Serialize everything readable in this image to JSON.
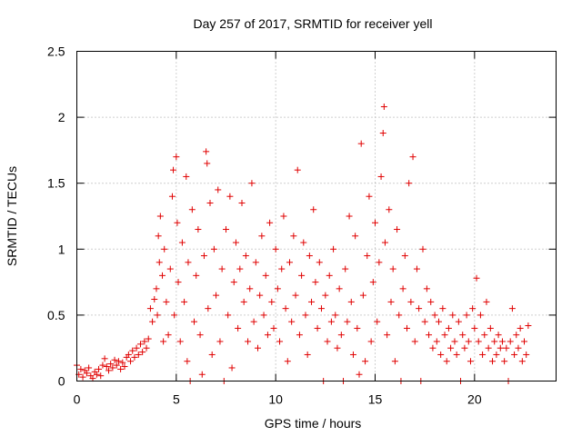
{
  "chart_data": {
    "type": "scatter",
    "title": "Day 257 of 2017, SRMTID for receiver yell",
    "xlabel": "GPS time / hours",
    "ylabel": "SRMTID / TECUs",
    "xlim": [
      0,
      24.1
    ],
    "ylim": [
      0,
      2.5
    ],
    "xticks": [
      0,
      5,
      10,
      15,
      20
    ],
    "xtick_labels": [
      "0",
      "5",
      "10",
      "15",
      "20"
    ],
    "yticks": [
      0,
      0.5,
      1,
      1.5,
      2,
      2.5
    ],
    "ytick_labels": [
      "0",
      "0.5",
      "1",
      "1.5",
      "2",
      "2.5"
    ],
    "grid": true,
    "marker": "plus",
    "color": "#e00000",
    "series": [
      {
        "name": "SRMTID",
        "points": [
          [
            0.0,
            0.12
          ],
          [
            0.1,
            0.05
          ],
          [
            0.2,
            0.09
          ],
          [
            0.3,
            0.03
          ],
          [
            0.4,
            0.08
          ],
          [
            0.5,
            0.06
          ],
          [
            0.6,
            0.1
          ],
          [
            0.7,
            0.04
          ],
          [
            0.8,
            0.02
          ],
          [
            0.9,
            0.07
          ],
          [
            1.0,
            0.05
          ],
          [
            1.1,
            0.09
          ],
          [
            1.2,
            0.04
          ],
          [
            1.3,
            0.12
          ],
          [
            1.4,
            0.17
          ],
          [
            1.5,
            0.11
          ],
          [
            1.6,
            0.08
          ],
          [
            1.7,
            0.13
          ],
          [
            1.8,
            0.1
          ],
          [
            1.9,
            0.16
          ],
          [
            2.0,
            0.12
          ],
          [
            2.1,
            0.15
          ],
          [
            2.2,
            0.09
          ],
          [
            2.3,
            0.14
          ],
          [
            2.4,
            0.11
          ],
          [
            2.5,
            0.18
          ],
          [
            2.6,
            0.2
          ],
          [
            2.7,
            0.15
          ],
          [
            2.8,
            0.23
          ],
          [
            2.9,
            0.18
          ],
          [
            3.0,
            0.25
          ],
          [
            3.1,
            0.2
          ],
          [
            3.2,
            0.28
          ],
          [
            3.3,
            0.22
          ],
          [
            3.4,
            0.3
          ],
          [
            3.5,
            0.25
          ],
          [
            3.6,
            0.32
          ],
          [
            3.7,
            0.55
          ],
          [
            3.8,
            0.45
          ],
          [
            3.9,
            0.62
          ],
          [
            4.0,
            0.7
          ],
          [
            4.05,
            0.5
          ],
          [
            4.1,
            1.1
          ],
          [
            4.15,
            0.9
          ],
          [
            4.2,
            1.25
          ],
          [
            4.3,
            0.8
          ],
          [
            4.35,
            0.3
          ],
          [
            4.4,
            1.0
          ],
          [
            4.5,
            0.6
          ],
          [
            4.6,
            0.35
          ],
          [
            4.7,
            0.85
          ],
          [
            4.8,
            1.4
          ],
          [
            4.85,
            1.6
          ],
          [
            4.9,
            0.5
          ],
          [
            5.0,
            1.7
          ],
          [
            5.05,
            1.2
          ],
          [
            5.1,
            0.75
          ],
          [
            5.2,
            0.3
          ],
          [
            5.3,
            1.05
          ],
          [
            5.4,
            0.6
          ],
          [
            5.5,
            1.55
          ],
          [
            5.55,
            0.15
          ],
          [
            5.6,
            0.9
          ],
          [
            5.7,
            0.0
          ],
          [
            5.8,
            1.3
          ],
          [
            5.9,
            0.45
          ],
          [
            6.0,
            0.8
          ],
          [
            6.1,
            1.15
          ],
          [
            6.2,
            0.35
          ],
          [
            6.3,
            0.05
          ],
          [
            6.4,
            0.95
          ],
          [
            6.5,
            1.74
          ],
          [
            6.55,
            1.65
          ],
          [
            6.6,
            0.55
          ],
          [
            6.7,
            1.35
          ],
          [
            6.8,
            0.2
          ],
          [
            6.9,
            1.0
          ],
          [
            7.0,
            0.65
          ],
          [
            7.1,
            1.45
          ],
          [
            7.2,
            0.3
          ],
          [
            7.3,
            0.85
          ],
          [
            7.4,
            0.0
          ],
          [
            7.5,
            1.15
          ],
          [
            7.6,
            0.5
          ],
          [
            7.7,
            1.4
          ],
          [
            7.8,
            0.1
          ],
          [
            7.9,
            0.75
          ],
          [
            8.0,
            1.05
          ],
          [
            8.1,
            0.4
          ],
          [
            8.2,
            0.85
          ],
          [
            8.3,
            1.35
          ],
          [
            8.4,
            0.6
          ],
          [
            8.5,
            0.95
          ],
          [
            8.6,
            0.3
          ],
          [
            8.7,
            0.7
          ],
          [
            8.8,
            1.5
          ],
          [
            8.9,
            0.45
          ],
          [
            9.0,
            0.9
          ],
          [
            9.1,
            0.25
          ],
          [
            9.2,
            0.65
          ],
          [
            9.3,
            1.1
          ],
          [
            9.4,
            0.5
          ],
          [
            9.5,
            0.8
          ],
          [
            9.6,
            0.35
          ],
          [
            9.7,
            1.2
          ],
          [
            9.8,
            0.6
          ],
          [
            9.9,
            0.4
          ],
          [
            10.0,
            1.0
          ],
          [
            10.1,
            0.7
          ],
          [
            10.2,
            0.3
          ],
          [
            10.3,
            0.85
          ],
          [
            10.4,
            1.25
          ],
          [
            10.5,
            0.55
          ],
          [
            10.6,
            0.15
          ],
          [
            10.7,
            0.9
          ],
          [
            10.8,
            0.45
          ],
          [
            10.9,
            1.1
          ],
          [
            11.0,
            0.65
          ],
          [
            11.1,
            1.6
          ],
          [
            11.2,
            0.35
          ],
          [
            11.3,
            0.8
          ],
          [
            11.4,
            1.05
          ],
          [
            11.5,
            0.5
          ],
          [
            11.6,
            0.2
          ],
          [
            11.7,
            0.95
          ],
          [
            11.8,
            0.6
          ],
          [
            11.9,
            1.3
          ],
          [
            12.0,
            0.75
          ],
          [
            12.1,
            0.4
          ],
          [
            12.2,
            0.9
          ],
          [
            12.3,
            0.55
          ],
          [
            12.4,
            0.0
          ],
          [
            12.5,
            0.65
          ],
          [
            12.6,
            0.3
          ],
          [
            12.7,
            0.8
          ],
          [
            12.8,
            0.45
          ],
          [
            12.9,
            1.0
          ],
          [
            13.0,
            0.5
          ],
          [
            13.1,
            0.25
          ],
          [
            13.2,
            0.7
          ],
          [
            13.3,
            0.35
          ],
          [
            13.4,
            0.0
          ],
          [
            13.5,
            0.85
          ],
          [
            13.6,
            0.45
          ],
          [
            13.7,
            1.25
          ],
          [
            13.8,
            0.6
          ],
          [
            13.9,
            0.2
          ],
          [
            14.0,
            1.1
          ],
          [
            14.1,
            0.4
          ],
          [
            14.2,
            0.05
          ],
          [
            14.3,
            1.8
          ],
          [
            14.4,
            0.65
          ],
          [
            14.5,
            0.15
          ],
          [
            14.6,
            0.95
          ],
          [
            14.7,
            1.4
          ],
          [
            14.8,
            0.3
          ],
          [
            14.9,
            0.75
          ],
          [
            15.0,
            1.2
          ],
          [
            15.1,
            0.45
          ],
          [
            15.2,
            0.9
          ],
          [
            15.3,
            1.55
          ],
          [
            15.4,
            1.88
          ],
          [
            15.45,
            2.08
          ],
          [
            15.5,
            1.05
          ],
          [
            15.6,
            0.35
          ],
          [
            15.7,
            1.3
          ],
          [
            15.8,
            0.6
          ],
          [
            15.9,
            0.85
          ],
          [
            16.0,
            0.15
          ],
          [
            16.1,
            1.15
          ],
          [
            16.2,
            0.5
          ],
          [
            16.3,
            0.0
          ],
          [
            16.4,
            0.7
          ],
          [
            16.5,
            0.95
          ],
          [
            16.6,
            0.4
          ],
          [
            16.7,
            1.5
          ],
          [
            16.8,
            0.6
          ],
          [
            16.9,
            1.7
          ],
          [
            17.0,
            0.3
          ],
          [
            17.1,
            0.85
          ],
          [
            17.2,
            0.55
          ],
          [
            17.3,
            0.0
          ],
          [
            17.4,
            1.0
          ],
          [
            17.5,
            0.45
          ],
          [
            17.6,
            0.7
          ],
          [
            17.7,
            0.35
          ],
          [
            17.8,
            0.6
          ],
          [
            17.9,
            0.25
          ],
          [
            18.0,
            0.5
          ],
          [
            18.1,
            0.3
          ],
          [
            18.2,
            0.45
          ],
          [
            18.3,
            0.2
          ],
          [
            18.4,
            0.55
          ],
          [
            18.5,
            0.35
          ],
          [
            18.6,
            0.15
          ],
          [
            18.7,
            0.4
          ],
          [
            18.8,
            0.25
          ],
          [
            18.9,
            0.5
          ],
          [
            19.0,
            0.3
          ],
          [
            19.1,
            0.2
          ],
          [
            19.2,
            0.45
          ],
          [
            19.3,
            0.0
          ],
          [
            19.4,
            0.35
          ],
          [
            19.5,
            0.25
          ],
          [
            19.6,
            0.5
          ],
          [
            19.7,
            0.3
          ],
          [
            19.8,
            0.15
          ],
          [
            19.9,
            0.55
          ],
          [
            20.0,
            0.4
          ],
          [
            20.1,
            0.78
          ],
          [
            20.2,
            0.3
          ],
          [
            20.3,
            0.5
          ],
          [
            20.4,
            0.2
          ],
          [
            20.5,
            0.35
          ],
          [
            20.6,
            0.6
          ],
          [
            20.7,
            0.25
          ],
          [
            20.8,
            0.4
          ],
          [
            20.9,
            0.15
          ],
          [
            21.0,
            0.3
          ],
          [
            21.1,
            0.2
          ],
          [
            21.2,
            0.35
          ],
          [
            21.3,
            0.25
          ],
          [
            21.4,
            0.3
          ],
          [
            21.5,
            0.15
          ],
          [
            21.6,
            0.25
          ],
          [
            21.7,
            0.0
          ],
          [
            21.8,
            0.3
          ],
          [
            21.9,
            0.55
          ],
          [
            22.0,
            0.2
          ],
          [
            22.1,
            0.35
          ],
          [
            22.2,
            0.25
          ],
          [
            22.3,
            0.4
          ],
          [
            22.4,
            0.15
          ],
          [
            22.5,
            0.3
          ],
          [
            22.6,
            0.2
          ],
          [
            22.7,
            0.42
          ]
        ]
      }
    ]
  }
}
